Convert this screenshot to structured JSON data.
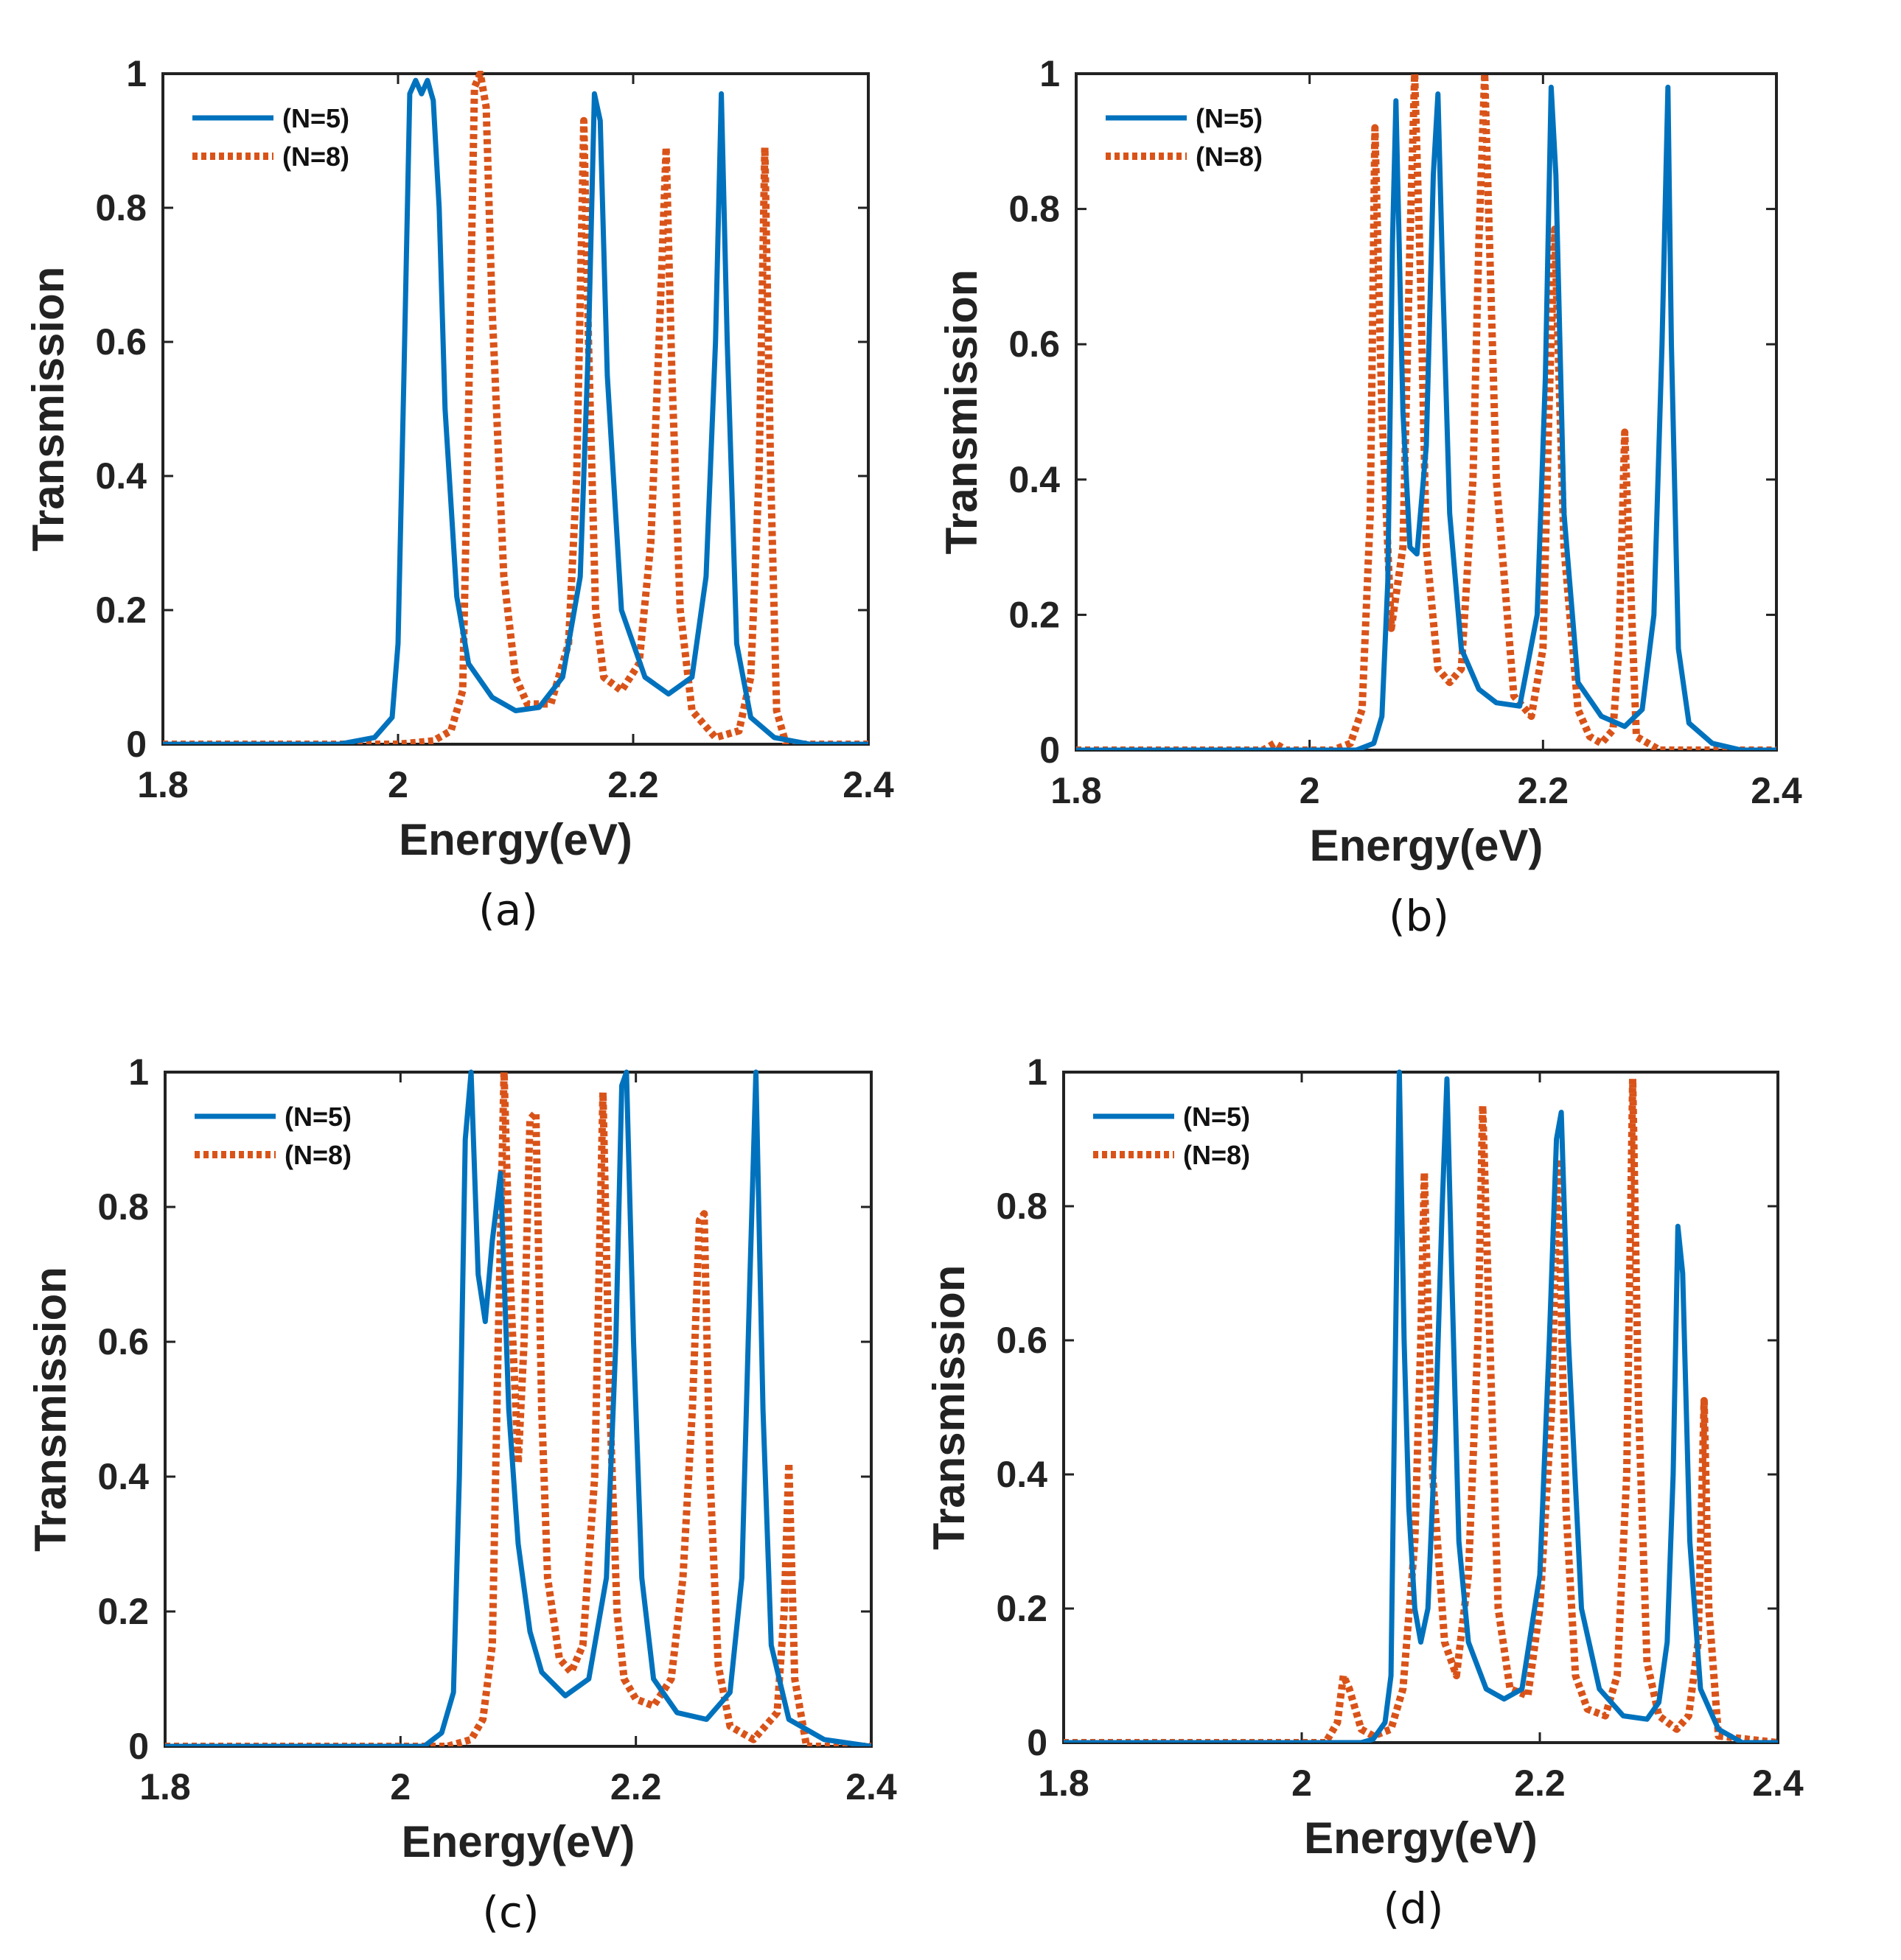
{
  "colors": {
    "n5": "#0072BD",
    "n8": "#D95319",
    "axis": "#222222",
    "background": "#ffffff"
  },
  "chart_data": [
    {
      "type": "line",
      "panel_label": "(a)",
      "xlabel": "Energy(eV)",
      "ylabel": "Transmission",
      "xlim": [
        1.8,
        2.4
      ],
      "ylim": [
        0,
        1
      ],
      "xticks": [
        "1.8",
        "2",
        "2.2",
        "2.4"
      ],
      "yticks": [
        "0",
        "0.2",
        "0.4",
        "0.6",
        "0.8",
        "1"
      ],
      "legend": [
        "(N=5)",
        "(N=8)"
      ],
      "legend_position": "top-left",
      "series": [
        {
          "name": "(N=5)",
          "style": "solid",
          "x": [
            1.8,
            1.95,
            1.98,
            1.995,
            2.0,
            2.005,
            2.01,
            2.015,
            2.02,
            2.025,
            2.03,
            2.035,
            2.04,
            2.05,
            2.06,
            2.08,
            2.1,
            2.12,
            2.14,
            2.155,
            2.162,
            2.167,
            2.172,
            2.178,
            2.19,
            2.21,
            2.23,
            2.25,
            2.262,
            2.27,
            2.275,
            2.28,
            2.288,
            2.3,
            2.32,
            2.35,
            2.4
          ],
          "y": [
            0,
            0,
            0.01,
            0.04,
            0.15,
            0.55,
            0.97,
            0.99,
            0.97,
            0.99,
            0.96,
            0.8,
            0.5,
            0.22,
            0.12,
            0.07,
            0.05,
            0.055,
            0.1,
            0.25,
            0.6,
            0.97,
            0.93,
            0.55,
            0.2,
            0.1,
            0.075,
            0.1,
            0.25,
            0.6,
            0.97,
            0.6,
            0.15,
            0.04,
            0.01,
            0,
            0
          ]
        },
        {
          "name": "(N=8)",
          "style": "dotted",
          "x": [
            1.8,
            2.0,
            2.03,
            2.045,
            2.055,
            2.06,
            2.065,
            2.07,
            2.075,
            2.08,
            2.09,
            2.1,
            2.11,
            2.13,
            2.145,
            2.152,
            2.158,
            2.162,
            2.168,
            2.175,
            2.19,
            2.205,
            2.215,
            2.222,
            2.228,
            2.233,
            2.24,
            2.25,
            2.27,
            2.29,
            2.3,
            2.307,
            2.312,
            2.317,
            2.322,
            2.33,
            2.35,
            2.4
          ],
          "y": [
            0,
            0,
            0.005,
            0.02,
            0.08,
            0.5,
            0.98,
            1.0,
            0.95,
            0.65,
            0.25,
            0.1,
            0.06,
            0.06,
            0.15,
            0.4,
            0.93,
            0.6,
            0.2,
            0.1,
            0.08,
            0.12,
            0.3,
            0.6,
            0.89,
            0.55,
            0.2,
            0.05,
            0.01,
            0.02,
            0.1,
            0.4,
            0.89,
            0.4,
            0.05,
            0,
            0,
            0
          ]
        }
      ]
    },
    {
      "type": "line",
      "panel_label": "(b)",
      "xlabel": "Energy(eV)",
      "ylabel": "Transmission",
      "xlim": [
        1.8,
        2.4
      ],
      "ylim": [
        0,
        1
      ],
      "xticks": [
        "1.8",
        "2",
        "2.2",
        "2.4"
      ],
      "yticks": [
        "0",
        "0.2",
        "0.4",
        "0.6",
        "0.8",
        "1"
      ],
      "legend": [
        "(N=5)",
        "(N=8)"
      ],
      "legend_position": "top-left",
      "series": [
        {
          "name": "(N=5)",
          "style": "solid",
          "x": [
            1.8,
            2.04,
            2.055,
            2.062,
            2.067,
            2.071,
            2.074,
            2.08,
            2.086,
            2.092,
            2.1,
            2.106,
            2.11,
            2.114,
            2.12,
            2.13,
            2.145,
            2.16,
            2.18,
            2.195,
            2.202,
            2.207,
            2.211,
            2.218,
            2.23,
            2.25,
            2.27,
            2.285,
            2.295,
            2.302,
            2.307,
            2.31,
            2.316,
            2.325,
            2.345,
            2.37,
            2.4
          ],
          "y": [
            0,
            0,
            0.01,
            0.05,
            0.25,
            0.75,
            0.96,
            0.5,
            0.3,
            0.29,
            0.45,
            0.85,
            0.97,
            0.7,
            0.35,
            0.15,
            0.09,
            0.07,
            0.065,
            0.2,
            0.55,
            0.98,
            0.85,
            0.35,
            0.1,
            0.05,
            0.035,
            0.06,
            0.2,
            0.6,
            0.98,
            0.6,
            0.15,
            0.04,
            0.01,
            0,
            0
          ]
        },
        {
          "name": "(N=8)",
          "style": "dotted",
          "x": [
            1.8,
            1.96,
            1.97,
            1.98,
            2.0,
            2.02,
            2.035,
            2.045,
            2.052,
            2.056,
            2.062,
            2.07,
            2.08,
            2.086,
            2.09,
            2.095,
            2.1,
            2.11,
            2.12,
            2.13,
            2.14,
            2.145,
            2.15,
            2.16,
            2.175,
            2.19,
            2.2,
            2.205,
            2.21,
            2.218,
            2.23,
            2.24,
            2.25,
            2.26,
            2.265,
            2.27,
            2.28,
            2.3,
            2.4
          ],
          "y": [
            0,
            0,
            0.01,
            0,
            0,
            0,
            0.01,
            0.06,
            0.35,
            0.92,
            0.5,
            0.18,
            0.3,
            0.75,
            1.0,
            0.7,
            0.3,
            0.12,
            0.1,
            0.12,
            0.4,
            0.75,
            1.0,
            0.4,
            0.08,
            0.05,
            0.15,
            0.5,
            0.77,
            0.3,
            0.06,
            0.02,
            0.01,
            0.03,
            0.15,
            0.47,
            0.02,
            0,
            0
          ]
        }
      ]
    },
    {
      "type": "line",
      "panel_label": "(c)",
      "xlabel": "Energy(eV)",
      "ylabel": "Transmission",
      "xlim": [
        1.8,
        2.4
      ],
      "ylim": [
        0,
        1
      ],
      "xticks": [
        "1.8",
        "2",
        "2.2",
        "2.4"
      ],
      "yticks": [
        "0",
        "0.2",
        "0.4",
        "0.6",
        "0.8",
        "1"
      ],
      "legend": [
        "(N=5)",
        "(N=8)"
      ],
      "legend_position": "top-left",
      "series": [
        {
          "name": "(N=5)",
          "style": "solid",
          "x": [
            1.8,
            2.02,
            2.035,
            2.045,
            2.05,
            2.055,
            2.06,
            2.066,
            2.072,
            2.078,
            2.085,
            2.092,
            2.1,
            2.11,
            2.12,
            2.14,
            2.16,
            2.175,
            2.183,
            2.188,
            2.192,
            2.198,
            2.205,
            2.215,
            2.235,
            2.26,
            2.28,
            2.29,
            2.297,
            2.302,
            2.308,
            2.315,
            2.33,
            2.36,
            2.4
          ],
          "y": [
            0,
            0,
            0.02,
            0.08,
            0.4,
            0.9,
            1.0,
            0.7,
            0.63,
            0.75,
            0.85,
            0.5,
            0.3,
            0.17,
            0.11,
            0.075,
            0.1,
            0.25,
            0.6,
            0.98,
            1.0,
            0.6,
            0.25,
            0.1,
            0.05,
            0.04,
            0.08,
            0.25,
            0.7,
            1.0,
            0.5,
            0.15,
            0.04,
            0.01,
            0
          ]
        },
        {
          "name": "(N=8)",
          "style": "dotted",
          "x": [
            1.8,
            2.04,
            2.06,
            2.07,
            2.078,
            2.083,
            2.088,
            2.093,
            2.1,
            2.105,
            2.11,
            2.115,
            2.12,
            2.125,
            2.135,
            2.145,
            2.155,
            2.165,
            2.172,
            2.178,
            2.184,
            2.19,
            2.2,
            2.215,
            2.23,
            2.24,
            2.248,
            2.254,
            2.258,
            2.263,
            2.27,
            2.28,
            2.3,
            2.32,
            2.326,
            2.33,
            2.335,
            2.345,
            2.4
          ],
          "y": [
            0,
            0,
            0.01,
            0.04,
            0.15,
            0.6,
            1.0,
            0.7,
            0.42,
            0.6,
            0.93,
            0.94,
            0.5,
            0.25,
            0.13,
            0.11,
            0.15,
            0.4,
            0.97,
            0.5,
            0.2,
            0.1,
            0.07,
            0.06,
            0.1,
            0.25,
            0.5,
            0.78,
            0.79,
            0.4,
            0.12,
            0.03,
            0.01,
            0.05,
            0.2,
            0.42,
            0.1,
            0,
            0
          ]
        }
      ]
    },
    {
      "type": "line",
      "panel_label": "(d)",
      "xlabel": "Energy(eV)",
      "ylabel": "Transmission",
      "xlim": [
        1.8,
        2.4
      ],
      "ylim": [
        0,
        1
      ],
      "xticks": [
        "1.8",
        "2",
        "2.2",
        "2.4"
      ],
      "yticks": [
        "0",
        "0.2",
        "0.4",
        "0.6",
        "0.8",
        "1"
      ],
      "legend": [
        "(N=5)",
        "(N=8)"
      ],
      "legend_position": "top-left",
      "series": [
        {
          "name": "(N=5)",
          "style": "solid",
          "x": [
            1.8,
            2.05,
            2.06,
            2.07,
            2.075,
            2.078,
            2.082,
            2.086,
            2.09,
            2.095,
            2.1,
            2.106,
            2.112,
            2.118,
            2.122,
            2.126,
            2.132,
            2.14,
            2.155,
            2.17,
            2.185,
            2.2,
            2.208,
            2.214,
            2.218,
            2.224,
            2.235,
            2.25,
            2.27,
            2.29,
            2.3,
            2.307,
            2.312,
            2.316,
            2.32,
            2.326,
            2.335,
            2.35,
            2.37,
            2.4
          ],
          "y": [
            0,
            0,
            0.005,
            0.03,
            0.1,
            0.5,
            1.0,
            0.6,
            0.35,
            0.2,
            0.15,
            0.2,
            0.45,
            0.8,
            0.99,
            0.7,
            0.3,
            0.15,
            0.08,
            0.065,
            0.08,
            0.25,
            0.6,
            0.9,
            0.94,
            0.6,
            0.2,
            0.08,
            0.04,
            0.035,
            0.06,
            0.15,
            0.4,
            0.77,
            0.7,
            0.3,
            0.08,
            0.02,
            0,
            0
          ]
        },
        {
          "name": "(N=8)",
          "style": "dotted",
          "x": [
            1.8,
            2.02,
            2.03,
            2.035,
            2.04,
            2.05,
            2.06,
            2.075,
            2.085,
            2.095,
            2.1,
            2.103,
            2.11,
            2.12,
            2.13,
            2.14,
            2.148,
            2.152,
            2.158,
            2.165,
            2.175,
            2.19,
            2.2,
            2.21,
            2.215,
            2.222,
            2.23,
            2.24,
            2.255,
            2.265,
            2.273,
            2.278,
            2.283,
            2.29,
            2.3,
            2.315,
            2.325,
            2.333,
            2.338,
            2.342,
            2.35,
            2.4
          ],
          "y": [
            0,
            0,
            0.03,
            0.1,
            0.08,
            0.02,
            0.01,
            0.02,
            0.08,
            0.3,
            0.6,
            0.85,
            0.4,
            0.15,
            0.1,
            0.25,
            0.6,
            0.95,
            0.6,
            0.2,
            0.08,
            0.07,
            0.2,
            0.5,
            0.87,
            0.35,
            0.1,
            0.05,
            0.04,
            0.1,
            0.4,
            0.99,
            0.5,
            0.12,
            0.04,
            0.02,
            0.04,
            0.15,
            0.51,
            0.2,
            0.01,
            0
          ]
        }
      ]
    }
  ]
}
